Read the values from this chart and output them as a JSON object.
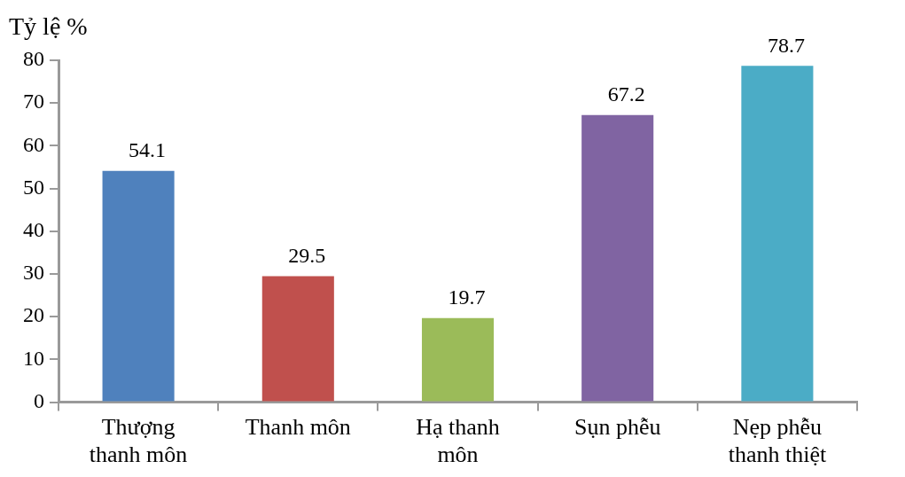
{
  "chart_data": {
    "type": "bar",
    "ylabel": "Tỷ lệ %",
    "categories": [
      "Thượng thanh môn",
      "Thanh môn",
      "Hạ thanh môn",
      "Sụn phễu",
      "Nẹp phễu thanh thiệt"
    ],
    "values": [
      54.1,
      29.5,
      19.7,
      67.2,
      78.7
    ],
    "colors": [
      "#4f81bd",
      "#c0504d",
      "#9bbb59",
      "#8064a2",
      "#4bacc6"
    ],
    "ylim": [
      0,
      80
    ],
    "yticks": [
      0,
      10,
      20,
      30,
      40,
      50,
      60,
      70,
      80
    ],
    "data_labels": true
  }
}
